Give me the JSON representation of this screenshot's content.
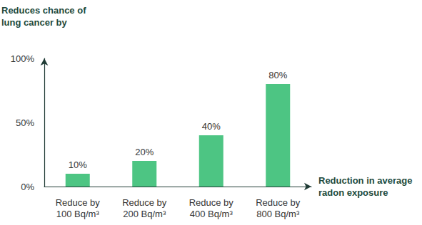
{
  "chart_data": {
    "type": "bar",
    "y_label": "Reduces chance of\nlung cancer by",
    "x_label": "Reduction in average\nradon exposure",
    "categories": [
      "Reduce by\n100 Bq/m³",
      "Reduce by\n200 Bq/m³",
      "Reduce by\n400 Bq/m³",
      "Reduce by\n800 Bq/m³"
    ],
    "values": [
      10,
      20,
      40,
      80
    ],
    "value_labels": [
      "10%",
      "20%",
      "40%",
      "80%"
    ],
    "data_labels": true,
    "color": "#4dc583",
    "ylim": [
      0,
      100
    ],
    "yticks": [
      {
        "value": 0,
        "label": "0%"
      },
      {
        "value": 50,
        "label": "50%"
      },
      {
        "value": 100,
        "label": "100%"
      }
    ],
    "grid": false
  }
}
